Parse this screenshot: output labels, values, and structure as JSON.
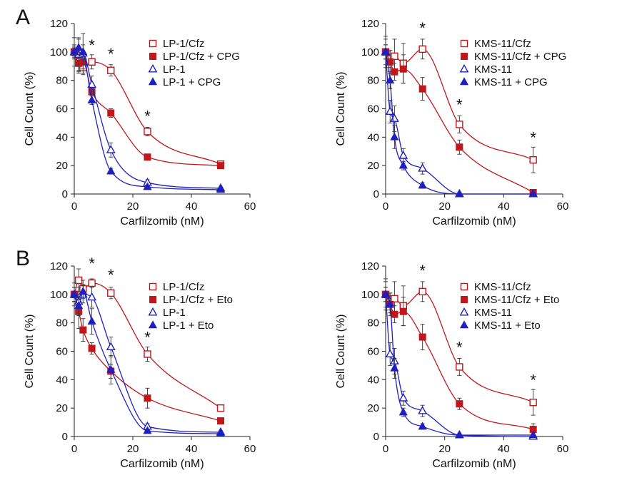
{
  "panel_letters": [
    "A",
    "B"
  ],
  "chart_data": [
    {
      "type": "scatter",
      "xlabel": "Carfilzomib (nM)",
      "ylabel": "Cell Count (%)",
      "xlim": [
        0,
        60
      ],
      "ylim": [
        0,
        120
      ],
      "xticks": [
        0,
        20,
        40,
        60
      ],
      "yticks": [
        0,
        20,
        40,
        60,
        80,
        100,
        120
      ],
      "legend": "top-right",
      "grid": false,
      "fit_lines": true,
      "series": [
        {
          "name": "LP-1/Cfz",
          "marker": "open-square",
          "color": "#c0171d",
          "x": [
            0,
            1.5,
            3,
            6,
            12.5,
            25,
            50
          ],
          "y": [
            100,
            93,
            89,
            93,
            87,
            44,
            21
          ],
          "err": [
            5,
            8,
            5,
            5,
            4,
            3,
            2
          ]
        },
        {
          "name": "LP-1/Cfz + CPG",
          "marker": "filled-square",
          "color": "#c0171d",
          "x": [
            0,
            1.5,
            3,
            6,
            12.5,
            25,
            50
          ],
          "y": [
            100,
            92,
            93,
            72,
            57,
            26,
            20
          ],
          "err": [
            3,
            5,
            5,
            3,
            3,
            2,
            2
          ]
        },
        {
          "name": "LP-1",
          "marker": "open-triangle",
          "color": "#1f1fbf",
          "x": [
            0,
            1.5,
            3,
            6,
            12.5,
            25,
            50
          ],
          "y": [
            100,
            98,
            99,
            77,
            31,
            8,
            4
          ],
          "err": [
            10,
            12,
            14,
            6,
            5,
            2,
            1
          ]
        },
        {
          "name": "LP-1 + CPG",
          "marker": "filled-triangle",
          "color": "#1f1fbf",
          "x": [
            0,
            1.5,
            3,
            6,
            12.5,
            25,
            50
          ],
          "y": [
            100,
            103,
            100,
            66,
            16,
            5,
            3
          ],
          "err": [
            4,
            6,
            5,
            3,
            2,
            1,
            1
          ]
        }
      ],
      "annotations": [
        {
          "text": "*",
          "x": 6,
          "y": 101
        },
        {
          "text": "*",
          "x": 12.5,
          "y": 95
        },
        {
          "text": "*",
          "x": 25,
          "y": 51
        }
      ]
    },
    {
      "type": "scatter",
      "xlabel": "Carfilzomib (nM)",
      "ylabel": "Cell Count (%)",
      "xlim": [
        0,
        60
      ],
      "ylim": [
        0,
        120
      ],
      "xticks": [
        0,
        20,
        40,
        60
      ],
      "yticks": [
        0,
        20,
        40,
        60,
        80,
        100,
        120
      ],
      "legend": "top-right",
      "grid": false,
      "fit_lines": true,
      "series": [
        {
          "name": "KMS-11/Cfz",
          "marker": "open-square",
          "color": "#c0171d",
          "x": [
            0,
            1.5,
            3,
            6,
            12.5,
            25,
            50
          ],
          "y": [
            100,
            95,
            97,
            92,
            102,
            49,
            24
          ],
          "err": [
            9,
            6,
            12,
            14,
            7,
            6,
            9
          ]
        },
        {
          "name": "KMS-11/Cfz + CPG",
          "marker": "filled-square",
          "color": "#c0171d",
          "x": [
            0,
            1.5,
            3,
            6,
            12.5,
            25,
            50
          ],
          "y": [
            100,
            93,
            86,
            88,
            74,
            33,
            1
          ],
          "err": [
            5,
            8,
            6,
            10,
            8,
            5,
            1
          ]
        },
        {
          "name": "KMS-11",
          "marker": "open-triangle",
          "color": "#1f1fbf",
          "x": [
            0,
            1.5,
            3,
            6,
            12.5,
            25,
            50
          ],
          "y": [
            100,
            58,
            53,
            27,
            18,
            0,
            0
          ],
          "err": [
            11,
            8,
            9,
            5,
            4,
            1,
            1
          ]
        },
        {
          "name": "KMS-11 + CPG",
          "marker": "filled-triangle",
          "color": "#1f1fbf",
          "x": [
            0,
            1.5,
            3,
            6,
            12.5,
            25,
            50
          ],
          "y": [
            100,
            80,
            40,
            20,
            6,
            0,
            0
          ],
          "err": [
            5,
            6,
            8,
            3,
            2,
            1,
            1
          ]
        }
      ],
      "annotations": [
        {
          "text": "*",
          "x": 12.5,
          "y": 113
        },
        {
          "text": "*",
          "x": 25,
          "y": 59
        },
        {
          "text": "*",
          "x": 50,
          "y": 36
        }
      ]
    },
    {
      "type": "scatter",
      "xlabel": "Carfilzomib (nM)",
      "ylabel": "Cell Count (%)",
      "xlim": [
        0,
        60
      ],
      "ylim": [
        0,
        120
      ],
      "xticks": [
        0,
        20,
        40,
        60
      ],
      "yticks": [
        0,
        20,
        40,
        60,
        80,
        100,
        120
      ],
      "legend": "top-right",
      "grid": false,
      "fit_lines": true,
      "series": [
        {
          "name": "LP-1/Cfz",
          "marker": "open-square",
          "color": "#c0171d",
          "x": [
            0,
            1.5,
            3,
            6,
            12.5,
            25,
            50
          ],
          "y": [
            100,
            110,
            104,
            108,
            101,
            58,
            20
          ],
          "err": [
            5,
            8,
            6,
            3,
            4,
            5,
            2
          ]
        },
        {
          "name": "LP-1/Cfz + Eto",
          "marker": "filled-square",
          "color": "#c0171d",
          "x": [
            0,
            1.5,
            3,
            6,
            12.5,
            25,
            50
          ],
          "y": [
            100,
            88,
            75,
            62,
            46,
            27,
            11
          ],
          "err": [
            5,
            12,
            8,
            4,
            5,
            7,
            2
          ]
        },
        {
          "name": "LP-1",
          "marker": "open-triangle",
          "color": "#1f1fbf",
          "x": [
            0,
            1.5,
            3,
            6,
            12.5,
            25,
            50
          ],
          "y": [
            100,
            95,
            100,
            98,
            63,
            7,
            3
          ],
          "err": [
            8,
            10,
            6,
            7,
            7,
            2,
            1
          ]
        },
        {
          "name": "LP-1 + Eto",
          "marker": "filled-triangle",
          "color": "#1f1fbf",
          "x": [
            0,
            1.5,
            3,
            6,
            12.5,
            25,
            50
          ],
          "y": [
            100,
            92,
            102,
            81,
            47,
            4,
            2
          ],
          "err": [
            5,
            6,
            5,
            9,
            10,
            1,
            1
          ]
        }
      ],
      "annotations": [
        {
          "text": "*",
          "x": 6,
          "y": 118
        },
        {
          "text": "*",
          "x": 12.5,
          "y": 110
        },
        {
          "text": "*",
          "x": 25,
          "y": 66
        }
      ]
    },
    {
      "type": "scatter",
      "xlabel": "Carfilzomib (nM)",
      "ylabel": "Cell Count (%)",
      "xlim": [
        0,
        60
      ],
      "ylim": [
        0,
        120
      ],
      "xticks": [
        0,
        20,
        40,
        60
      ],
      "yticks": [
        0,
        20,
        40,
        60,
        80,
        100,
        120
      ],
      "legend": "top-right",
      "grid": false,
      "fit_lines": true,
      "series": [
        {
          "name": "KMS-11/Cfz",
          "marker": "open-square",
          "color": "#c0171d",
          "x": [
            0,
            1.5,
            3,
            6,
            12.5,
            25,
            50
          ],
          "y": [
            100,
            95,
            97,
            92,
            102,
            49,
            24
          ],
          "err": [
            9,
            6,
            12,
            14,
            7,
            6,
            9
          ]
        },
        {
          "name": "KMS-11/Cfz + Eto",
          "marker": "filled-square",
          "color": "#c0171d",
          "x": [
            0,
            1.5,
            3,
            6,
            12.5,
            25,
            50
          ],
          "y": [
            100,
            93,
            86,
            88,
            70,
            23,
            5
          ],
          "err": [
            5,
            8,
            6,
            10,
            9,
            4,
            4
          ]
        },
        {
          "name": "KMS-11",
          "marker": "open-triangle",
          "color": "#1f1fbf",
          "x": [
            0,
            1.5,
            3,
            6,
            12.5,
            25,
            50
          ],
          "y": [
            100,
            58,
            53,
            27,
            18,
            1,
            0
          ],
          "err": [
            11,
            8,
            9,
            5,
            4,
            1,
            1
          ]
        },
        {
          "name": "KMS-11 + Eto",
          "marker": "filled-triangle",
          "color": "#1f1fbf",
          "x": [
            0,
            1.5,
            3,
            6,
            12.5,
            25,
            50
          ],
          "y": [
            100,
            93,
            48,
            17,
            7,
            1,
            1
          ],
          "err": [
            5,
            6,
            7,
            3,
            2,
            1,
            1
          ]
        }
      ],
      "annotations": [
        {
          "text": "*",
          "x": 12.5,
          "y": 113
        },
        {
          "text": "*",
          "x": 25,
          "y": 59
        },
        {
          "text": "*",
          "x": 50,
          "y": 36
        }
      ]
    }
  ]
}
